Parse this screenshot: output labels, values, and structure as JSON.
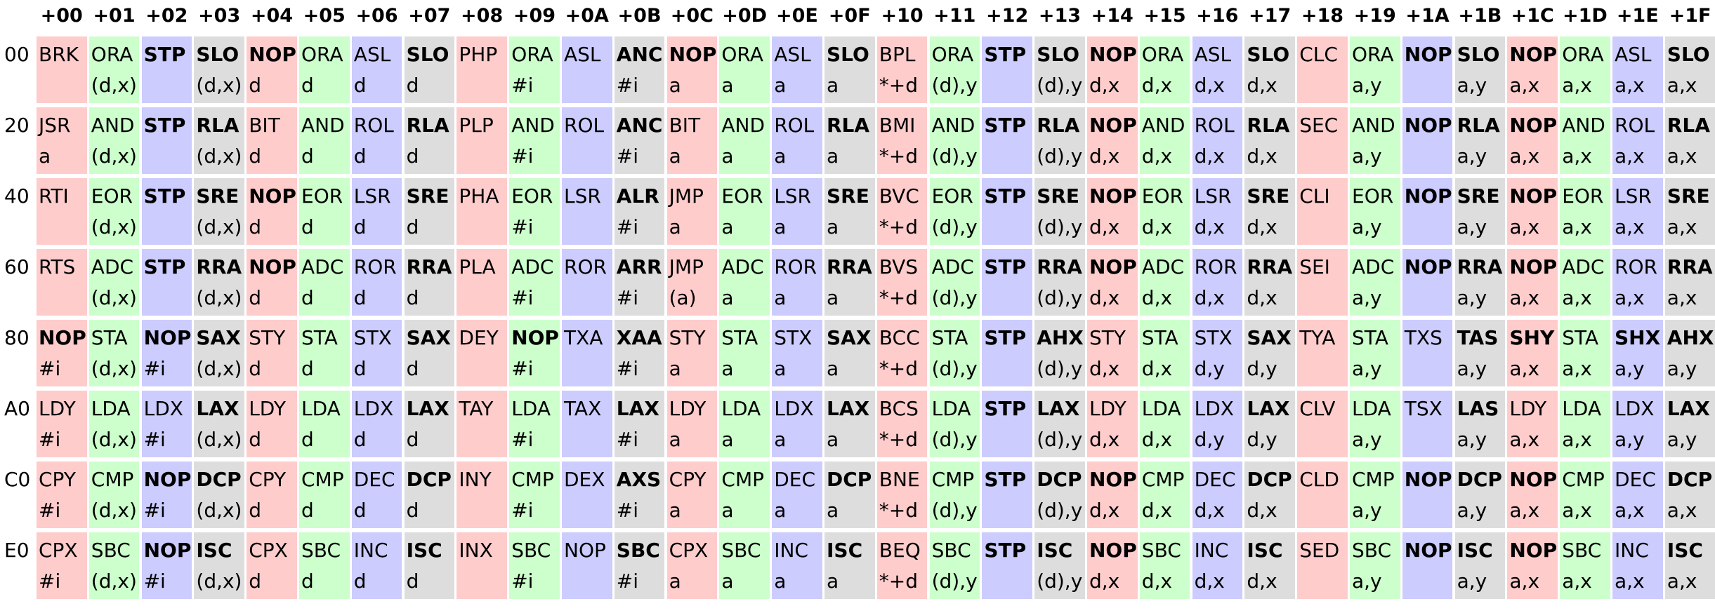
{
  "columns": [
    "+00",
    "+01",
    "+02",
    "+03",
    "+04",
    "+05",
    "+06",
    "+07",
    "+08",
    "+09",
    "+0A",
    "+0B",
    "+0C",
    "+0D",
    "+0E",
    "+0F",
    "+10",
    "+11",
    "+12",
    "+13",
    "+14",
    "+15",
    "+16",
    "+17",
    "+18",
    "+19",
    "+1A",
    "+1B",
    "+1C",
    "+1D",
    "+1E",
    "+1F"
  ],
  "colors": {
    "r": "#ffcccc",
    "g": "#ccffcc",
    "b": "#ccccff",
    "k": "#dddddd"
  },
  "rows": [
    {
      "label": "00",
      "cells": [
        [
          "BRK",
          "",
          0
        ],
        [
          "ORA",
          "(d,x)",
          0
        ],
        [
          "STP",
          "",
          1
        ],
        [
          "SLO",
          "(d,x)",
          1
        ],
        [
          "NOP",
          "d",
          1
        ],
        [
          "ORA",
          "d",
          0
        ],
        [
          "ASL",
          "d",
          0
        ],
        [
          "SLO",
          "d",
          1
        ],
        [
          "PHP",
          "",
          0
        ],
        [
          "ORA",
          "#i",
          0
        ],
        [
          "ASL",
          "",
          0
        ],
        [
          "ANC",
          "#i",
          1
        ],
        [
          "NOP",
          "a",
          1
        ],
        [
          "ORA",
          "a",
          0
        ],
        [
          "ASL",
          "a",
          0
        ],
        [
          "SLO",
          "a",
          1
        ],
        [
          "BPL",
          "*+d",
          0
        ],
        [
          "ORA",
          "(d),y",
          0
        ],
        [
          "STP",
          "",
          1
        ],
        [
          "SLO",
          "(d),y",
          1
        ],
        [
          "NOP",
          "d,x",
          1
        ],
        [
          "ORA",
          "d,x",
          0
        ],
        [
          "ASL",
          "d,x",
          0
        ],
        [
          "SLO",
          "d,x",
          1
        ],
        [
          "CLC",
          "",
          0
        ],
        [
          "ORA",
          "a,y",
          0
        ],
        [
          "NOP",
          "",
          1
        ],
        [
          "SLO",
          "a,y",
          1
        ],
        [
          "NOP",
          "a,x",
          1
        ],
        [
          "ORA",
          "a,x",
          0
        ],
        [
          "ASL",
          "a,x",
          0
        ],
        [
          "SLO",
          "a,x",
          1
        ]
      ]
    },
    {
      "label": "20",
      "cells": [
        [
          "JSR",
          "a",
          0
        ],
        [
          "AND",
          "(d,x)",
          0
        ],
        [
          "STP",
          "",
          1
        ],
        [
          "RLA",
          "(d,x)",
          1
        ],
        [
          "BIT",
          "d",
          0
        ],
        [
          "AND",
          "d",
          0
        ],
        [
          "ROL",
          "d",
          0
        ],
        [
          "RLA",
          "d",
          1
        ],
        [
          "PLP",
          "",
          0
        ],
        [
          "AND",
          "#i",
          0
        ],
        [
          "ROL",
          "",
          0
        ],
        [
          "ANC",
          "#i",
          1
        ],
        [
          "BIT",
          "a",
          0
        ],
        [
          "AND",
          "a",
          0
        ],
        [
          "ROL",
          "a",
          0
        ],
        [
          "RLA",
          "a",
          1
        ],
        [
          "BMI",
          "*+d",
          0
        ],
        [
          "AND",
          "(d),y",
          0
        ],
        [
          "STP",
          "",
          1
        ],
        [
          "RLA",
          "(d),y",
          1
        ],
        [
          "NOP",
          "d,x",
          1
        ],
        [
          "AND",
          "d,x",
          0
        ],
        [
          "ROL",
          "d,x",
          0
        ],
        [
          "RLA",
          "d,x",
          1
        ],
        [
          "SEC",
          "",
          0
        ],
        [
          "AND",
          "a,y",
          0
        ],
        [
          "NOP",
          "",
          1
        ],
        [
          "RLA",
          "a,y",
          1
        ],
        [
          "NOP",
          "a,x",
          1
        ],
        [
          "AND",
          "a,x",
          0
        ],
        [
          "ROL",
          "a,x",
          0
        ],
        [
          "RLA",
          "a,x",
          1
        ]
      ]
    },
    {
      "label": "40",
      "cells": [
        [
          "RTI",
          "",
          0
        ],
        [
          "EOR",
          "(d,x)",
          0
        ],
        [
          "STP",
          "",
          1
        ],
        [
          "SRE",
          "(d,x)",
          1
        ],
        [
          "NOP",
          "d",
          1
        ],
        [
          "EOR",
          "d",
          0
        ],
        [
          "LSR",
          "d",
          0
        ],
        [
          "SRE",
          "d",
          1
        ],
        [
          "PHA",
          "",
          0
        ],
        [
          "EOR",
          "#i",
          0
        ],
        [
          "LSR",
          "",
          0
        ],
        [
          "ALR",
          "#i",
          1
        ],
        [
          "JMP",
          "a",
          0
        ],
        [
          "EOR",
          "a",
          0
        ],
        [
          "LSR",
          "a",
          0
        ],
        [
          "SRE",
          "a",
          1
        ],
        [
          "BVC",
          "*+d",
          0
        ],
        [
          "EOR",
          "(d),y",
          0
        ],
        [
          "STP",
          "",
          1
        ],
        [
          "SRE",
          "(d),y",
          1
        ],
        [
          "NOP",
          "d,x",
          1
        ],
        [
          "EOR",
          "d,x",
          0
        ],
        [
          "LSR",
          "d,x",
          0
        ],
        [
          "SRE",
          "d,x",
          1
        ],
        [
          "CLI",
          "",
          0
        ],
        [
          "EOR",
          "a,y",
          0
        ],
        [
          "NOP",
          "",
          1
        ],
        [
          "SRE",
          "a,y",
          1
        ],
        [
          "NOP",
          "a,x",
          1
        ],
        [
          "EOR",
          "a,x",
          0
        ],
        [
          "LSR",
          "a,x",
          0
        ],
        [
          "SRE",
          "a,x",
          1
        ]
      ]
    },
    {
      "label": "60",
      "cells": [
        [
          "RTS",
          "",
          0
        ],
        [
          "ADC",
          "(d,x)",
          0
        ],
        [
          "STP",
          "",
          1
        ],
        [
          "RRA",
          "(d,x)",
          1
        ],
        [
          "NOP",
          "d",
          1
        ],
        [
          "ADC",
          "d",
          0
        ],
        [
          "ROR",
          "d",
          0
        ],
        [
          "RRA",
          "d",
          1
        ],
        [
          "PLA",
          "",
          0
        ],
        [
          "ADC",
          "#i",
          0
        ],
        [
          "ROR",
          "",
          0
        ],
        [
          "ARR",
          "#i",
          1
        ],
        [
          "JMP",
          "(a)",
          0
        ],
        [
          "ADC",
          "a",
          0
        ],
        [
          "ROR",
          "a",
          0
        ],
        [
          "RRA",
          "a",
          1
        ],
        [
          "BVS",
          "*+d",
          0
        ],
        [
          "ADC",
          "(d),y",
          0
        ],
        [
          "STP",
          "",
          1
        ],
        [
          "RRA",
          "(d),y",
          1
        ],
        [
          "NOP",
          "d,x",
          1
        ],
        [
          "ADC",
          "d,x",
          0
        ],
        [
          "ROR",
          "d,x",
          0
        ],
        [
          "RRA",
          "d,x",
          1
        ],
        [
          "SEI",
          "",
          0
        ],
        [
          "ADC",
          "a,y",
          0
        ],
        [
          "NOP",
          "",
          1
        ],
        [
          "RRA",
          "a,y",
          1
        ],
        [
          "NOP",
          "a,x",
          1
        ],
        [
          "ADC",
          "a,x",
          0
        ],
        [
          "ROR",
          "a,x",
          0
        ],
        [
          "RRA",
          "a,x",
          1
        ]
      ]
    },
    {
      "label": "80",
      "cells": [
        [
          "NOP",
          "#i",
          1
        ],
        [
          "STA",
          "(d,x)",
          0
        ],
        [
          "NOP",
          "#i",
          1
        ],
        [
          "SAX",
          "(d,x)",
          1
        ],
        [
          "STY",
          "d",
          0
        ],
        [
          "STA",
          "d",
          0
        ],
        [
          "STX",
          "d",
          0
        ],
        [
          "SAX",
          "d",
          1
        ],
        [
          "DEY",
          "",
          0
        ],
        [
          "NOP",
          "#i",
          1
        ],
        [
          "TXA",
          "",
          0
        ],
        [
          "XAA",
          "#i",
          1
        ],
        [
          "STY",
          "a",
          0
        ],
        [
          "STA",
          "a",
          0
        ],
        [
          "STX",
          "a",
          0
        ],
        [
          "SAX",
          "a",
          1
        ],
        [
          "BCC",
          "*+d",
          0
        ],
        [
          "STA",
          "(d),y",
          0
        ],
        [
          "STP",
          "",
          1
        ],
        [
          "AHX",
          "(d),y",
          1
        ],
        [
          "STY",
          "d,x",
          0
        ],
        [
          "STA",
          "d,x",
          0
        ],
        [
          "STX",
          "d,y",
          0
        ],
        [
          "SAX",
          "d,y",
          1
        ],
        [
          "TYA",
          "",
          0
        ],
        [
          "STA",
          "a,y",
          0
        ],
        [
          "TXS",
          "",
          0
        ],
        [
          "TAS",
          "a,y",
          1
        ],
        [
          "SHY",
          "a,x",
          1
        ],
        [
          "STA",
          "a,x",
          0
        ],
        [
          "SHX",
          "a,y",
          1
        ],
        [
          "AHX",
          "a,y",
          1
        ]
      ]
    },
    {
      "label": "A0",
      "cells": [
        [
          "LDY",
          "#i",
          0
        ],
        [
          "LDA",
          "(d,x)",
          0
        ],
        [
          "LDX",
          "#i",
          0
        ],
        [
          "LAX",
          "(d,x)",
          1
        ],
        [
          "LDY",
          "d",
          0
        ],
        [
          "LDA",
          "d",
          0
        ],
        [
          "LDX",
          "d",
          0
        ],
        [
          "LAX",
          "d",
          1
        ],
        [
          "TAY",
          "",
          0
        ],
        [
          "LDA",
          "#i",
          0
        ],
        [
          "TAX",
          "",
          0
        ],
        [
          "LAX",
          "#i",
          1
        ],
        [
          "LDY",
          "a",
          0
        ],
        [
          "LDA",
          "a",
          0
        ],
        [
          "LDX",
          "a",
          0
        ],
        [
          "LAX",
          "a",
          1
        ],
        [
          "BCS",
          "*+d",
          0
        ],
        [
          "LDA",
          "(d),y",
          0
        ],
        [
          "STP",
          "",
          1
        ],
        [
          "LAX",
          "(d),y",
          1
        ],
        [
          "LDY",
          "d,x",
          0
        ],
        [
          "LDA",
          "d,x",
          0
        ],
        [
          "LDX",
          "d,y",
          0
        ],
        [
          "LAX",
          "d,y",
          1
        ],
        [
          "CLV",
          "",
          0
        ],
        [
          "LDA",
          "a,y",
          0
        ],
        [
          "TSX",
          "",
          0
        ],
        [
          "LAS",
          "a,y",
          1
        ],
        [
          "LDY",
          "a,x",
          0
        ],
        [
          "LDA",
          "a,x",
          0
        ],
        [
          "LDX",
          "a,y",
          0
        ],
        [
          "LAX",
          "a,y",
          1
        ]
      ]
    },
    {
      "label": "C0",
      "cells": [
        [
          "CPY",
          "#i",
          0
        ],
        [
          "CMP",
          "(d,x)",
          0
        ],
        [
          "NOP",
          "#i",
          1
        ],
        [
          "DCP",
          "(d,x)",
          1
        ],
        [
          "CPY",
          "d",
          0
        ],
        [
          "CMP",
          "d",
          0
        ],
        [
          "DEC",
          "d",
          0
        ],
        [
          "DCP",
          "d",
          1
        ],
        [
          "INY",
          "",
          0
        ],
        [
          "CMP",
          "#i",
          0
        ],
        [
          "DEX",
          "",
          0
        ],
        [
          "AXS",
          "#i",
          1
        ],
        [
          "CPY",
          "a",
          0
        ],
        [
          "CMP",
          "a",
          0
        ],
        [
          "DEC",
          "a",
          0
        ],
        [
          "DCP",
          "a",
          1
        ],
        [
          "BNE",
          "*+d",
          0
        ],
        [
          "CMP",
          "(d),y",
          0
        ],
        [
          "STP",
          "",
          1
        ],
        [
          "DCP",
          "(d),y",
          1
        ],
        [
          "NOP",
          "d,x",
          1
        ],
        [
          "CMP",
          "d,x",
          0
        ],
        [
          "DEC",
          "d,x",
          0
        ],
        [
          "DCP",
          "d,x",
          1
        ],
        [
          "CLD",
          "",
          0
        ],
        [
          "CMP",
          "a,y",
          0
        ],
        [
          "NOP",
          "",
          1
        ],
        [
          "DCP",
          "a,y",
          1
        ],
        [
          "NOP",
          "a,x",
          1
        ],
        [
          "CMP",
          "a,x",
          0
        ],
        [
          "DEC",
          "a,x",
          0
        ],
        [
          "DCP",
          "a,x",
          1
        ]
      ]
    },
    {
      "label": "E0",
      "cells": [
        [
          "CPX",
          "#i",
          0
        ],
        [
          "SBC",
          "(d,x)",
          0
        ],
        [
          "NOP",
          "#i",
          1
        ],
        [
          "ISC",
          "(d,x)",
          1
        ],
        [
          "CPX",
          "d",
          0
        ],
        [
          "SBC",
          "d",
          0
        ],
        [
          "INC",
          "d",
          0
        ],
        [
          "ISC",
          "d",
          1
        ],
        [
          "INX",
          "",
          0
        ],
        [
          "SBC",
          "#i",
          0
        ],
        [
          "NOP",
          "",
          0
        ],
        [
          "SBC",
          "#i",
          1
        ],
        [
          "CPX",
          "a",
          0
        ],
        [
          "SBC",
          "a",
          0
        ],
        [
          "INC",
          "a",
          0
        ],
        [
          "ISC",
          "a",
          1
        ],
        [
          "BEQ",
          "*+d",
          0
        ],
        [
          "SBC",
          "(d),y",
          0
        ],
        [
          "STP",
          "",
          1
        ],
        [
          "ISC",
          "(d),y",
          1
        ],
        [
          "NOP",
          "d,x",
          1
        ],
        [
          "SBC",
          "d,x",
          0
        ],
        [
          "INC",
          "d,x",
          0
        ],
        [
          "ISC",
          "d,x",
          1
        ],
        [
          "SED",
          "",
          0
        ],
        [
          "SBC",
          "a,y",
          0
        ],
        [
          "NOP",
          "",
          1
        ],
        [
          "ISC",
          "a,y",
          1
        ],
        [
          "NOP",
          "a,x",
          1
        ],
        [
          "SBC",
          "a,x",
          0
        ],
        [
          "INC",
          "a,x",
          0
        ],
        [
          "ISC",
          "a,x",
          1
        ]
      ]
    }
  ]
}
